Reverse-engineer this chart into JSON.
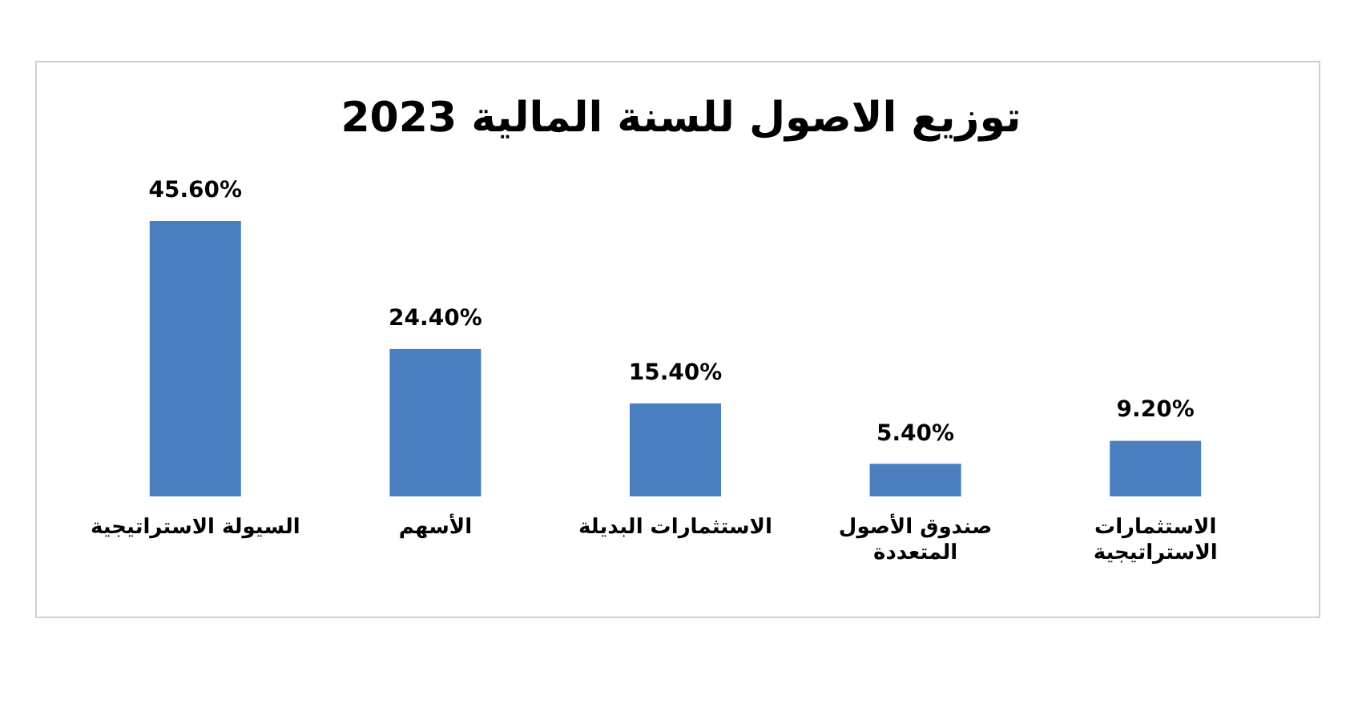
{
  "chart_data": {
    "type": "bar",
    "title": "توزيع الاصول للسنة المالية 2023",
    "categories": [
      "السيولة الاستراتيجية",
      "الأسهم",
      "الاستثمارات البديلة",
      "صندوق الأصول\nالمتعددة",
      "الاستثمارات\nالاستراتيجية"
    ],
    "values": [
      45.6,
      24.4,
      15.4,
      5.4,
      9.2
    ],
    "value_labels": [
      "45.60%",
      "24.40%",
      "15.40%",
      "5.40%",
      "9.20%"
    ],
    "color": "#4a7ebf",
    "grid": false,
    "legend": false
  }
}
